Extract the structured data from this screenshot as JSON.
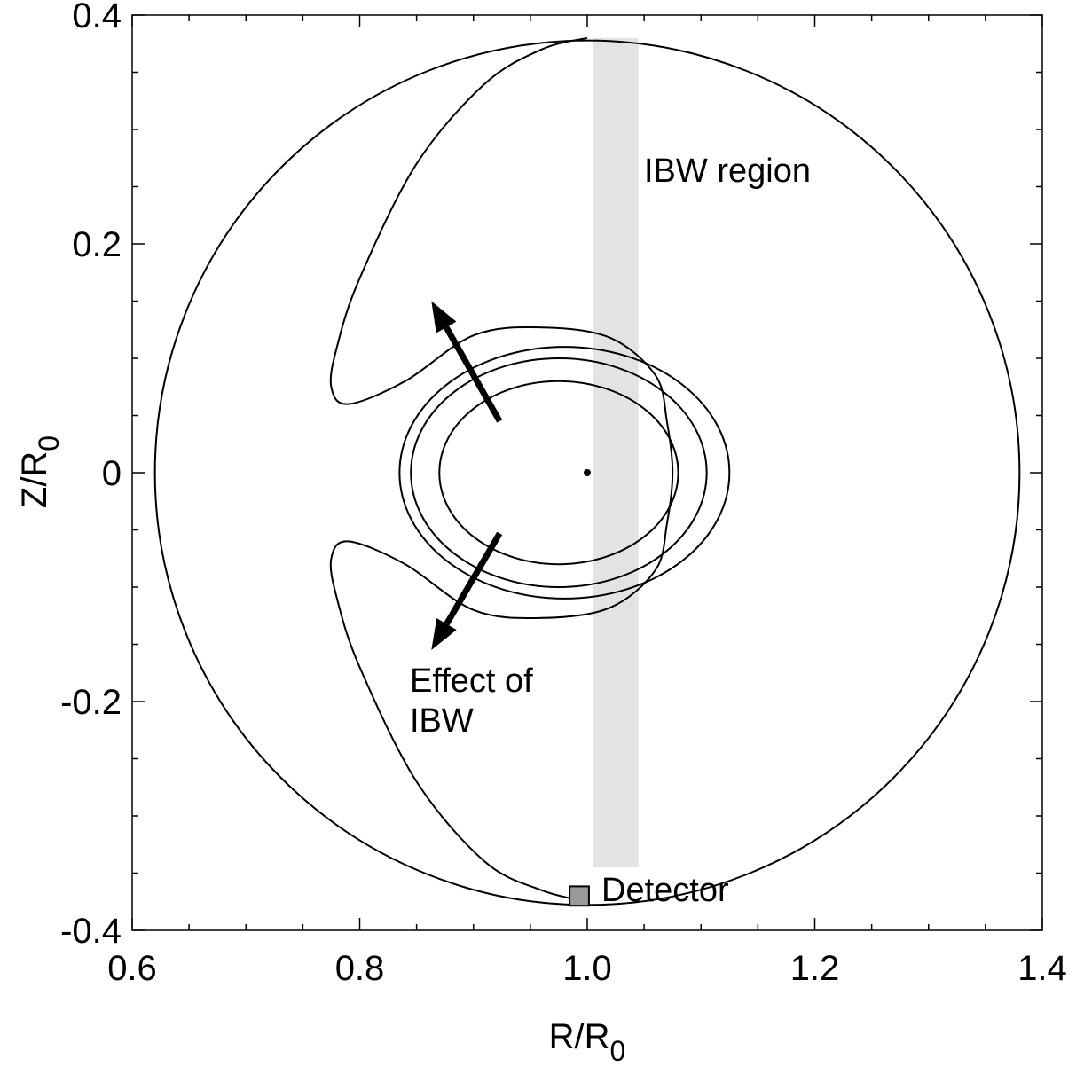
{
  "chart_data": {
    "type": "scatter",
    "xlabel": {
      "main": "R/R",
      "sub": "0"
    },
    "ylabel": {
      "main": "Z/R",
      "sub": "0"
    },
    "xlim": [
      0.6,
      1.4
    ],
    "ylim": [
      -0.4,
      0.4
    ],
    "x_ticks": [
      {
        "value": 0.6,
        "label": "0.6"
      },
      {
        "value": 0.8,
        "label": "0.8"
      },
      {
        "value": 1.0,
        "label": "1.0"
      },
      {
        "value": 1.2,
        "label": "1.2"
      },
      {
        "value": 1.4,
        "label": "1.4"
      }
    ],
    "y_ticks": [
      {
        "value": 0.4,
        "label": "0.4"
      },
      {
        "value": 0.2,
        "label": "0.2"
      },
      {
        "value": 0.0,
        "label": "0"
      },
      {
        "value": -0.2,
        "label": "-0.2"
      },
      {
        "value": -0.4,
        "label": "-0.4"
      }
    ],
    "x_minor_step": 0.05,
    "y_minor_step": 0.05,
    "grid": false,
    "vessel_boundary": {
      "center": [
        1.0,
        0.0
      ],
      "radius": 0.38
    },
    "magnetic_axis": [
      1.0,
      0.0
    ],
    "ibw_region": {
      "r_range": [
        1.005,
        1.045
      ],
      "z_range": [
        -0.345,
        0.38
      ],
      "color": "#e2e3e5"
    },
    "flux_surfaces": [
      {
        "center": [
          0.975,
          0.0
        ],
        "half_width_r": 0.105,
        "half_height_z": 0.08
      },
      {
        "center": [
          0.975,
          0.0
        ],
        "half_width_r": 0.13,
        "half_height_z": 0.1
      },
      {
        "center": [
          0.98,
          0.0
        ],
        "half_width_r": 0.145,
        "half_height_z": 0.11
      }
    ],
    "orbit_contour": {
      "points": [
        [
          1.0,
          0.38
        ],
        [
          0.96,
          0.37
        ],
        [
          0.91,
          0.34
        ],
        [
          0.85,
          0.27
        ],
        [
          0.8,
          0.17
        ],
        [
          0.78,
          0.11
        ],
        [
          0.775,
          0.075
        ],
        [
          0.79,
          0.06
        ],
        [
          0.84,
          0.08
        ],
        [
          0.9,
          0.12
        ],
        [
          0.96,
          0.127
        ],
        [
          1.02,
          0.118
        ],
        [
          1.06,
          0.085
        ],
        [
          1.07,
          0.045
        ],
        [
          1.075,
          0.0
        ],
        [
          1.07,
          -0.045
        ],
        [
          1.06,
          -0.085
        ],
        [
          1.02,
          -0.118
        ],
        [
          0.96,
          -0.127
        ],
        [
          0.9,
          -0.12
        ],
        [
          0.84,
          -0.08
        ],
        [
          0.79,
          -0.06
        ],
        [
          0.775,
          -0.075
        ],
        [
          0.78,
          -0.11
        ],
        [
          0.8,
          -0.17
        ],
        [
          0.85,
          -0.27
        ],
        [
          0.91,
          -0.34
        ],
        [
          0.96,
          -0.365
        ],
        [
          1.0,
          -0.375
        ]
      ]
    },
    "arrows": [
      {
        "from": [
          0.923,
          0.045
        ],
        "to": [
          0.863,
          0.15
        ]
      },
      {
        "from": [
          0.923,
          -0.053
        ],
        "to": [
          0.863,
          -0.155
        ]
      }
    ],
    "detector": {
      "position": [
        0.993,
        -0.37
      ],
      "size": 0.017,
      "color": "#999999"
    },
    "annotations": {
      "ibw_region_label": "IBW region",
      "effect_line1": "Effect of",
      "effect_line2": "IBW",
      "detector_label": "Detector"
    }
  }
}
